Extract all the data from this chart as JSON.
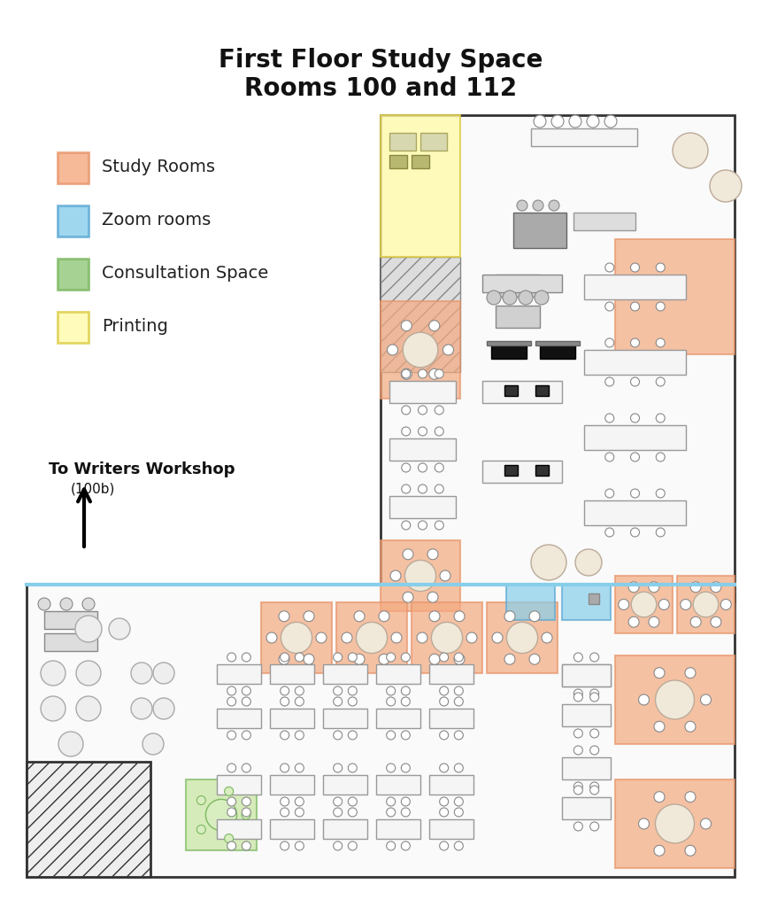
{
  "title_line1": "First Floor Study Space",
  "title_line2": "Rooms 100 and 112",
  "title_fontsize": 20,
  "bg_color": "#ffffff",
  "legend_items": [
    {
      "label": "Study Rooms",
      "color": "#F4A97F"
    },
    {
      "label": "Zoom rooms",
      "color": "#87CEEB"
    },
    {
      "label": "Consultation Space",
      "color": "#90C77A"
    },
    {
      "label": "Printing",
      "color": "#FFFAAA"
    }
  ],
  "arrow_text": "To Writers Workshop\n(100b)",
  "floor_outline_color": "#333333",
  "wall_color": "#555555",
  "study_room_color": "#F4A97F",
  "study_room_border": "#E8956A",
  "zoom_room_color": "#87CEEB",
  "zoom_room_border": "#5BA8D4",
  "consult_room_color": "#C8E6A0",
  "consult_room_border": "#7BB860",
  "print_area_color": "#FFFAAA",
  "print_area_border": "#DDCC44",
  "hatch_color": "#AAAAAA",
  "table_color": "#FFFFFF",
  "table_border": "#999999",
  "chair_color": "#FFFFFF",
  "chair_border": "#888888",
  "round_table_color": "#F0E8D8",
  "round_table_border": "#BBAA99"
}
